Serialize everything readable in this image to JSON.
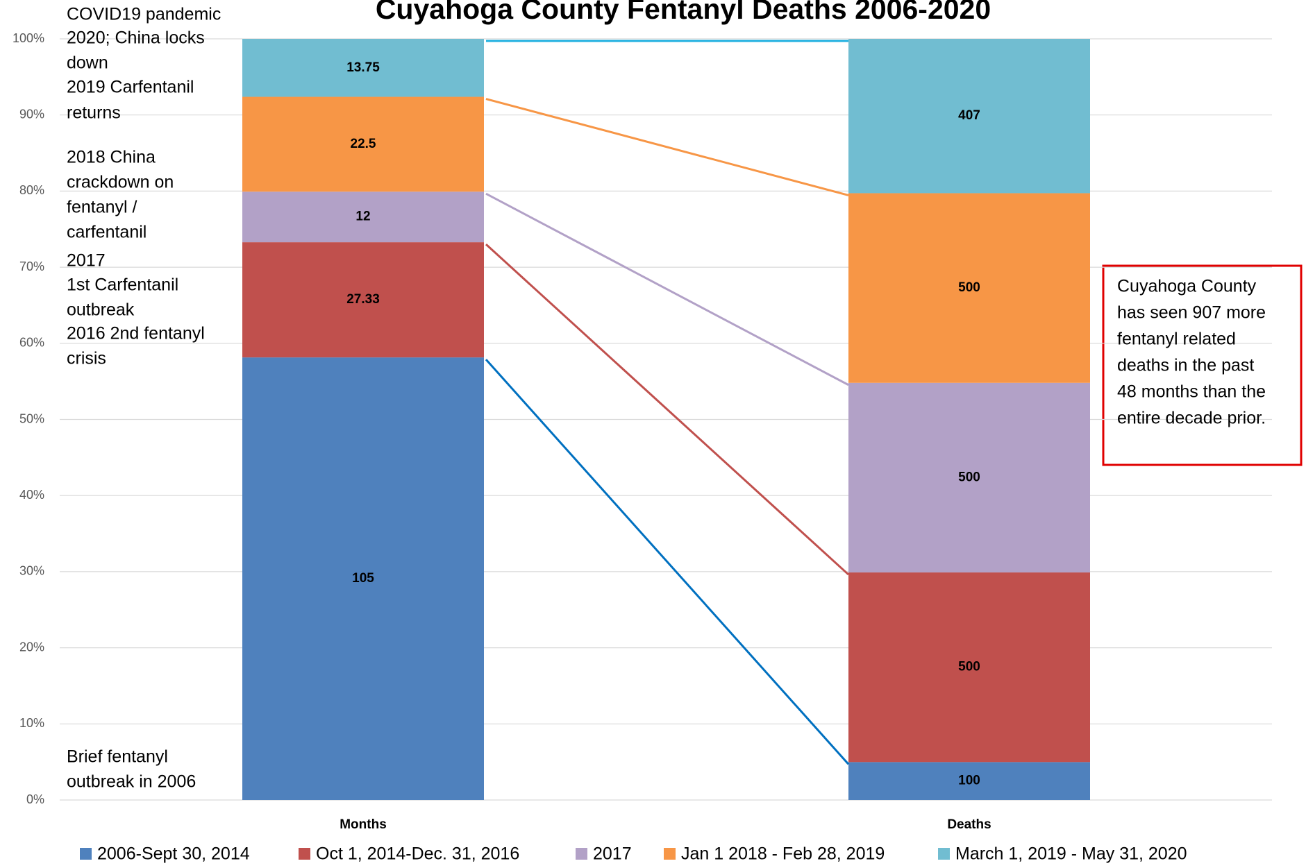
{
  "chart_data": {
    "type": "bar",
    "stacking": "percent",
    "title": "Cuyahoga County Fentanyl Deaths 2006-2020",
    "categories": [
      "Months",
      "Deaths"
    ],
    "series": [
      {
        "name": "2006-Sept 30, 2014",
        "color": "#4f81bd",
        "line_color": "#0070c0",
        "values": [
          105,
          100
        ]
      },
      {
        "name": "Oct 1, 2014-Dec. 31, 2016",
        "color": "#c0504d",
        "line_color": "#c0504d",
        "values": [
          27.33,
          500
        ]
      },
      {
        "name": "2017",
        "color": "#b2a1c7",
        "line_color": "#b2a1c7",
        "values": [
          12,
          500
        ]
      },
      {
        "name": "Jan 1 2018 - Feb 28, 2019",
        "color": "#f79646",
        "line_color": "#f79646",
        "values": [
          22.5,
          500
        ]
      },
      {
        "name": "March 1, 2019 - May 31, 2020",
        "color": "#71bdd1",
        "line_color": "#1fb0e0",
        "values": [
          13.75,
          407
        ]
      }
    ],
    "ylim": [
      0,
      100
    ],
    "yticks": [
      {
        "value": 0,
        "label": "0%"
      },
      {
        "value": 10,
        "label": "10%"
      },
      {
        "value": 20,
        "label": "20%"
      },
      {
        "value": 30,
        "label": "30%"
      },
      {
        "value": 40,
        "label": "40%"
      },
      {
        "value": 50,
        "label": "50%"
      },
      {
        "value": 60,
        "label": "60%"
      },
      {
        "value": 70,
        "label": "70%"
      },
      {
        "value": 80,
        "label": "80%"
      },
      {
        "value": 90,
        "label": "90%"
      },
      {
        "value": 100,
        "label": "100%"
      }
    ],
    "grid": true,
    "legend": "bottom",
    "annotations": [
      [
        "COVID19 pandemic",
        "2020; China locks",
        "down"
      ],
      [
        "2019 Carfentanil",
        "returns"
      ],
      [
        "2018 China",
        "crackdown on",
        "fentanyl /",
        "carfentanil"
      ],
      [
        "2017",
        "1st Carfentanil",
        "outbreak"
      ],
      [
        "2016 2nd fentanyl",
        "crisis"
      ],
      [
        "Brief fentanyl",
        "outbreak in 2006"
      ]
    ],
    "callout": [
      "Cuyahoga County",
      "has seen 907 more",
      "fentanyl related",
      "deaths in the past",
      "48 months than the",
      "entire decade prior."
    ]
  }
}
